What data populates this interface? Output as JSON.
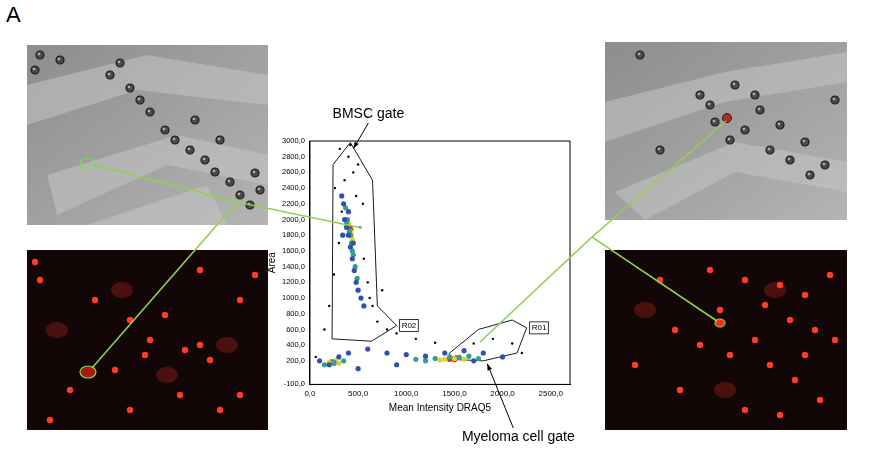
{
  "panel_label": "A",
  "chart_data": {
    "type": "scatter",
    "x_label": "Mean Intensity DRAQ5",
    "y_label": "Area",
    "xlim": [
      0,
      2700
    ],
    "ylim": [
      -100,
      3000
    ],
    "xticks": [
      {
        "value": 0,
        "label": "0,0"
      },
      {
        "value": 500,
        "label": "500,0"
      },
      {
        "value": 1000,
        "label": "1000,0"
      },
      {
        "value": 1500,
        "label": "1500,0"
      },
      {
        "value": 2000,
        "label": "2000,0"
      },
      {
        "value": 2500,
        "label": "2500,0"
      }
    ],
    "yticks": [
      {
        "value": -100,
        "label": "-100,0"
      },
      {
        "value": 200,
        "label": "200,0"
      },
      {
        "value": 400,
        "label": "400,0"
      },
      {
        "value": 600,
        "label": "600,0"
      },
      {
        "value": 800,
        "label": "800,0"
      },
      {
        "value": 1000,
        "label": "1000,0"
      },
      {
        "value": 1200,
        "label": "1200,0"
      },
      {
        "value": 1400,
        "label": "1400,0"
      },
      {
        "value": 1600,
        "label": "1600,0"
      },
      {
        "value": 1800,
        "label": "1800,0"
      },
      {
        "value": 2000,
        "label": "2000,0"
      },
      {
        "value": 2200,
        "label": "2200,0"
      },
      {
        "value": 2400,
        "label": "2400,0"
      },
      {
        "value": 2600,
        "label": "2600,0"
      },
      {
        "value": 2800,
        "label": "2800,0"
      },
      {
        "value": 3000,
        "label": "3000,0"
      }
    ],
    "grid": false,
    "series": [
      {
        "color": "#000000",
        "x": [
          150,
          200,
          250,
          300,
          330,
          360,
          400,
          450,
          480,
          520,
          560,
          600,
          650,
          700,
          260,
          310,
          420,
          500,
          550,
          620,
          900,
          1100,
          1300,
          1700,
          1900,
          2100,
          2200,
          60,
          800,
          750
        ],
        "values": [
          600,
          900,
          1300,
          1700,
          2100,
          2500,
          2800,
          2600,
          2300,
          1900,
          1500,
          1200,
          900,
          700,
          2400,
          2900,
          2950,
          2700,
          2200,
          1000,
          550,
          480,
          430,
          420,
          480,
          420,
          300,
          250,
          600,
          1100
        ]
      },
      {
        "color": "#3050b0",
        "x": [
          330,
          350,
          360,
          380,
          400,
          420,
          440,
          460,
          480,
          500,
          530,
          560,
          400,
          450,
          340,
          100,
          200,
          300,
          400,
          600,
          800,
          1000,
          1200,
          1400,
          1600,
          1800,
          2000,
          500,
          900,
          1700
        ],
        "values": [
          2300,
          2200,
          2000,
          1900,
          1800,
          1650,
          1500,
          1350,
          1200,
          1100,
          1000,
          900,
          2100,
          1700,
          1800,
          200,
          150,
          250,
          300,
          350,
          300,
          280,
          260,
          300,
          330,
          300,
          250,
          100,
          150,
          200
        ]
      },
      {
        "color": "#30a090",
        "x": [
          370,
          390,
          410,
          430,
          450,
          470,
          490,
          380,
          420,
          440,
          150,
          250,
          350,
          1100,
          1300,
          1450,
          1550,
          1650,
          1750,
          1200
        ],
        "values": [
          2150,
          2000,
          1850,
          1700,
          1550,
          1400,
          1250,
          1950,
          1800,
          1600,
          150,
          180,
          200,
          220,
          230,
          250,
          240,
          260,
          230,
          200
        ]
      },
      {
        "color": "#e0d030",
        "x": [
          400,
          420,
          440,
          430,
          200,
          260,
          1400,
          1500,
          1600,
          1350,
          1550,
          300
        ],
        "values": [
          1950,
          1850,
          1750,
          1800,
          180,
          200,
          220,
          230,
          220,
          210,
          250,
          170
        ]
      },
      {
        "color": "#d03020",
        "x": [
          415,
          425,
          230,
          250,
          1480,
          1520,
          1450,
          1500
        ],
        "values": [
          1900,
          1870,
          190,
          170,
          230,
          240,
          220,
          215
        ]
      }
    ],
    "gates": [
      {
        "name": "R02",
        "label": "BMSC gate",
        "x": [
          240,
          420,
          650,
          700,
          900,
          640,
          230
        ],
        "y": [
          2700,
          2980,
          2500,
          900,
          650,
          450,
          480
        ]
      },
      {
        "name": "R01",
        "label": "Myeloma cell gate",
        "x": [
          1450,
          1750,
          2100,
          2250,
          2150,
          1800,
          1450
        ],
        "y": [
          300,
          600,
          720,
          620,
          300,
          200,
          220
        ]
      }
    ]
  }
}
